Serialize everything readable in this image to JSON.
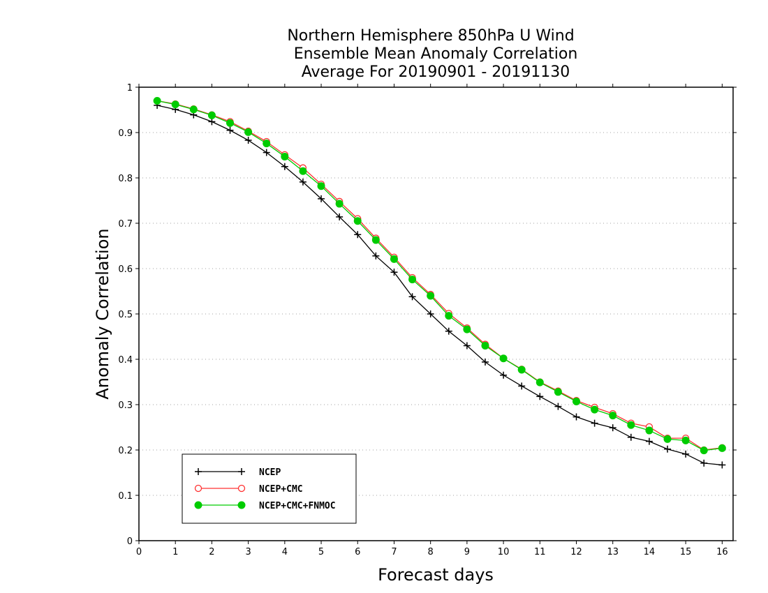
{
  "chart_data": {
    "type": "line",
    "title_lines": [
      "Northern Hemisphere 850hPa U Wind",
      "Ensemble Mean Anomaly Correlation",
      "Average For 20190901 - 20191130"
    ],
    "xlabel": "Forecast days",
    "ylabel": "Anomaly Correlation",
    "xlim": [
      0,
      16.3
    ],
    "ylim": [
      0,
      1
    ],
    "x_ticks": [
      0,
      1,
      2,
      3,
      4,
      5,
      6,
      7,
      8,
      9,
      10,
      11,
      12,
      13,
      14,
      15,
      16
    ],
    "y_ticks": [
      0,
      0.1,
      0.2,
      0.3,
      0.4,
      0.5,
      0.6,
      0.7,
      0.8,
      0.9,
      1
    ],
    "y_tick_labels": [
      "0",
      "0.1",
      "0.2",
      "0.3",
      "0.4",
      "0.5",
      "0.6",
      "0.7",
      "0.8",
      "0.9",
      "1"
    ],
    "grid": "horizontal dotted",
    "legend_position": "bottom-left",
    "x": [
      0.5,
      1,
      1.5,
      2,
      2.5,
      3,
      3.5,
      4,
      4.5,
      5,
      5.5,
      6,
      6.5,
      7,
      7.5,
      8,
      8.5,
      9,
      9.5,
      10,
      10.5,
      11,
      11.5,
      12,
      12.5,
      13,
      13.5,
      14,
      14.5,
      15,
      15.5,
      16
    ],
    "series": [
      {
        "name": "NCEP",
        "color": "#000000",
        "marker": "plus",
        "values": [
          0.96,
          0.951,
          0.939,
          0.924,
          0.905,
          0.883,
          0.856,
          0.825,
          0.791,
          0.754,
          0.714,
          0.675,
          0.628,
          0.592,
          0.538,
          0.5,
          0.462,
          0.43,
          0.394,
          0.365,
          0.341,
          0.318,
          0.296,
          0.273,
          0.259,
          0.249,
          0.228,
          0.219,
          0.202,
          0.191,
          0.171,
          0.167
        ]
      },
      {
        "name": "NCEP+CMC",
        "color": "#ff3030",
        "marker": "open-circle",
        "values": [
          0.97,
          0.963,
          0.952,
          0.939,
          0.924,
          0.903,
          0.88,
          0.851,
          0.822,
          0.786,
          0.748,
          0.71,
          0.667,
          0.625,
          0.58,
          0.543,
          0.501,
          0.469,
          0.433,
          0.402,
          0.378,
          0.35,
          0.33,
          0.309,
          0.294,
          0.28,
          0.259,
          0.251,
          0.226,
          0.226,
          0.2,
          0.205
        ]
      },
      {
        "name": "NCEP+CMC+FNMOC",
        "color": "#00cc00",
        "marker": "filled-circle",
        "values": [
          0.97,
          0.962,
          0.951,
          0.938,
          0.921,
          0.901,
          0.876,
          0.847,
          0.815,
          0.782,
          0.743,
          0.705,
          0.663,
          0.621,
          0.576,
          0.54,
          0.496,
          0.466,
          0.43,
          0.402,
          0.377,
          0.349,
          0.328,
          0.307,
          0.289,
          0.276,
          0.255,
          0.243,
          0.224,
          0.221,
          0.199,
          0.204
        ]
      }
    ]
  }
}
